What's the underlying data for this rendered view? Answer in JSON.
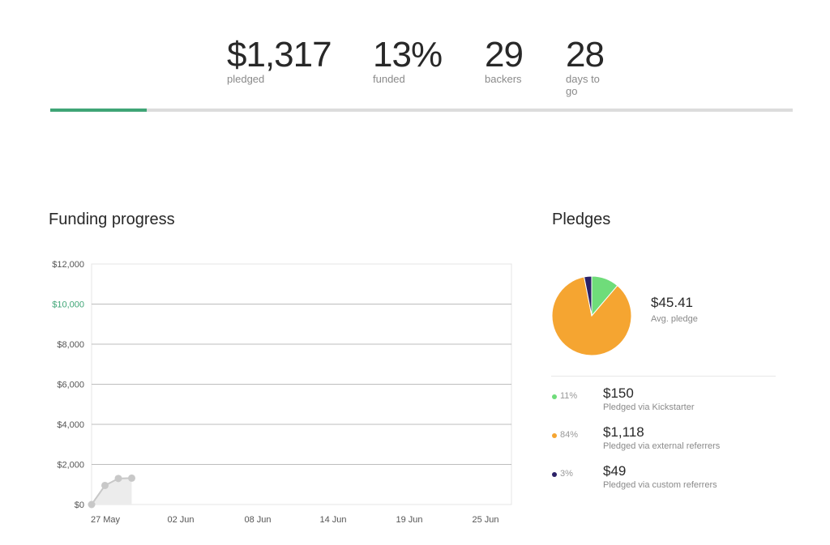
{
  "stats": {
    "pledged": {
      "value": "$1,317",
      "label": "pledged"
    },
    "funded": {
      "value": "13%",
      "label": "funded"
    },
    "backers": {
      "value": "29",
      "label": "backers"
    },
    "days": {
      "value": "28",
      "label": "days to go"
    }
  },
  "progress": {
    "fraction": 0.13,
    "color": "#3fa576"
  },
  "funding": {
    "heading": "Funding progress"
  },
  "pledges": {
    "heading": "Pledges",
    "avg_value": "$45.41",
    "avg_label": "Avg. pledge",
    "items": [
      {
        "pct": "11%",
        "amount": "$150",
        "desc": "Pledged via Kickstarter",
        "color": "#6fdc7a"
      },
      {
        "pct": "84%",
        "amount": "$1,118",
        "desc": "Pledged via external referrers",
        "color": "#f5a531"
      },
      {
        "pct": "3%",
        "amount": "$49",
        "desc": "Pledged via custom referrers",
        "color": "#2b2167"
      }
    ]
  },
  "chart_data": [
    {
      "type": "area",
      "title": "Funding progress",
      "ylim": [
        0,
        12000
      ],
      "yticks": [
        "$0",
        "$2,000",
        "$4,000",
        "$6,000",
        "$8,000",
        "$10,000",
        "$12,000"
      ],
      "goal_tick": "$10,000",
      "xticks": [
        "27 May",
        "02 Jun",
        "08 Jun",
        "14 Jun",
        "19 Jun",
        "25 Jun"
      ],
      "series": [
        {
          "x": [
            0,
            1,
            2,
            3
          ],
          "values": [
            0,
            950,
            1300,
            1317
          ]
        }
      ],
      "colors": {
        "goal": "#3fa576",
        "line": "#c8c8c8",
        "fill": "#ececec"
      }
    },
    {
      "type": "pie",
      "categories": [
        "Kickstarter",
        "External referrers",
        "Custom referrers"
      ],
      "values": [
        11,
        84,
        3
      ],
      "colors": [
        "#6fdc7a",
        "#f5a531",
        "#2b2167"
      ]
    }
  ]
}
